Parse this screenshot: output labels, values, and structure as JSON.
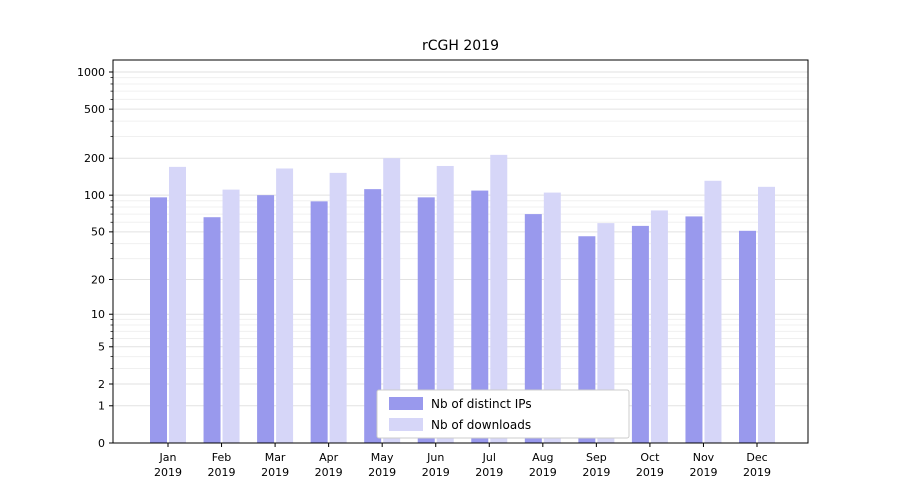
{
  "chart_data": {
    "type": "bar",
    "title": "rCGH 2019",
    "xlabel": "",
    "ylabel": "",
    "yscale": "log1p",
    "grid": true,
    "legend_position": "lower center",
    "categories": [
      "Jan 2019",
      "Feb 2019",
      "Mar 2019",
      "Apr 2019",
      "May 2019",
      "Jun 2019",
      "Jul 2019",
      "Aug 2019",
      "Sep 2019",
      "Oct 2019",
      "Nov 2019",
      "Dec 2019"
    ],
    "yticks": [
      0,
      1,
      2,
      5,
      10,
      20,
      50,
      100,
      200,
      500,
      1000
    ],
    "ylim": [
      0,
      1250
    ],
    "series": [
      {
        "name": "Nb of distinct IPs",
        "color": "#9999ed",
        "values": [
          96,
          66,
          100,
          89,
          112,
          96,
          109,
          70,
          46,
          56,
          67,
          51
        ]
      },
      {
        "name": "Nb of downloads",
        "color": "#d6d6f8",
        "values": [
          170,
          111,
          165,
          152,
          200,
          173,
          213,
          105,
          59,
          75,
          131,
          117
        ]
      }
    ]
  },
  "colors": {
    "grid_major": "#e2e2e2",
    "grid_minor": "#f0f0f0",
    "axis": "#000000",
    "legend_border": "#cccccc",
    "legend_bg": "#ffffff"
  }
}
